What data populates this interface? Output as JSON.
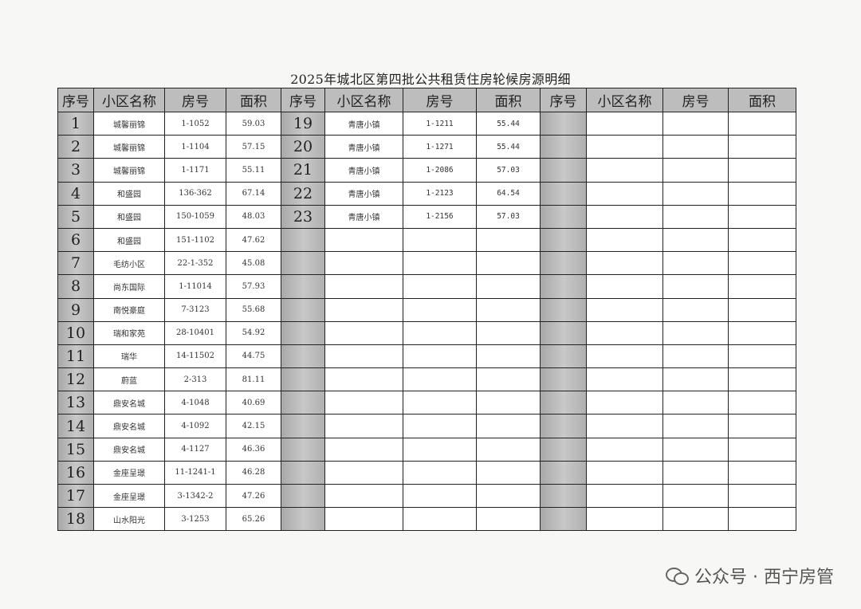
{
  "title": "2025年城北区第四批公共租赁住房轮候房源明细",
  "headers": [
    "序号",
    "小区名称",
    "房号",
    "面积",
    "序号",
    "小区名称",
    "房号",
    "面积",
    "序号",
    "小区名称",
    "房号",
    "面积"
  ],
  "rows": [
    [
      {
        "seq": "1",
        "name": "城馨丽锦",
        "room": "1-1052",
        "area": "59.03"
      },
      {
        "seq": "19",
        "name": "青唐小镇",
        "room": "1-1211",
        "area": "55.44"
      },
      {
        "seq": "",
        "name": "",
        "room": "",
        "area": ""
      }
    ],
    [
      {
        "seq": "2",
        "name": "城馨丽锦",
        "room": "1-1104",
        "area": "57.15"
      },
      {
        "seq": "20",
        "name": "青唐小镇",
        "room": "1-1271",
        "area": "55.44"
      },
      {
        "seq": "",
        "name": "",
        "room": "",
        "area": ""
      }
    ],
    [
      {
        "seq": "3",
        "name": "城馨丽锦",
        "room": "1-1171",
        "area": "55.11"
      },
      {
        "seq": "21",
        "name": "青唐小镇",
        "room": "1-2086",
        "area": "57.03"
      },
      {
        "seq": "",
        "name": "",
        "room": "",
        "area": ""
      }
    ],
    [
      {
        "seq": "4",
        "name": "和盛园",
        "room": "136-362",
        "area": "67.14"
      },
      {
        "seq": "22",
        "name": "青唐小镇",
        "room": "1-2123",
        "area": "64.54"
      },
      {
        "seq": "",
        "name": "",
        "room": "",
        "area": ""
      }
    ],
    [
      {
        "seq": "5",
        "name": "和盛园",
        "room": "150-1059",
        "area": "48.03"
      },
      {
        "seq": "23",
        "name": "青唐小镇",
        "room": "1-2156",
        "area": "57.03"
      },
      {
        "seq": "",
        "name": "",
        "room": "",
        "area": ""
      }
    ],
    [
      {
        "seq": "6",
        "name": "和盛园",
        "room": "151-1102",
        "area": "47.62"
      }
    ],
    [
      {
        "seq": "7",
        "name": "毛纺小区",
        "room": "22-1-352",
        "area": "45.08"
      }
    ],
    [
      {
        "seq": "8",
        "name": "尚东国际",
        "room": "1-11014",
        "area": "57.93"
      }
    ],
    [
      {
        "seq": "9",
        "name": "南悦豪庭",
        "room": "7-3123",
        "area": "55.68"
      }
    ],
    [
      {
        "seq": "10",
        "name": "瑞和家苑",
        "room": "28-10401",
        "area": "54.92"
      }
    ],
    [
      {
        "seq": "11",
        "name": "瑞华",
        "room": "14-11502",
        "area": "44.75"
      }
    ],
    [
      {
        "seq": "12",
        "name": "蔚蓝",
        "room": "2-313",
        "area": "81.11"
      }
    ],
    [
      {
        "seq": "13",
        "name": "鼎安名城",
        "room": "4-1048",
        "area": "40.69"
      }
    ],
    [
      {
        "seq": "14",
        "name": "鼎安名城",
        "room": "4-1092",
        "area": "42.15"
      }
    ],
    [
      {
        "seq": "15",
        "name": "鼎安名城",
        "room": "4-1127",
        "area": "46.36"
      }
    ],
    [
      {
        "seq": "16",
        "name": "金座呈璟",
        "room": "11-1241-1",
        "area": "46.28"
      }
    ],
    [
      {
        "seq": "17",
        "name": "金座呈璟",
        "room": "3-1342-2",
        "area": "47.26"
      }
    ],
    [
      {
        "seq": "18",
        "name": "山水阳光",
        "room": "3-1253",
        "area": "65.26"
      }
    ]
  ],
  "watermark": "公众号 · 西宁房管",
  "colors": {
    "header_bg": "#bdbdbd",
    "seq_bg": "#b4b4b4",
    "border": "#222222"
  }
}
